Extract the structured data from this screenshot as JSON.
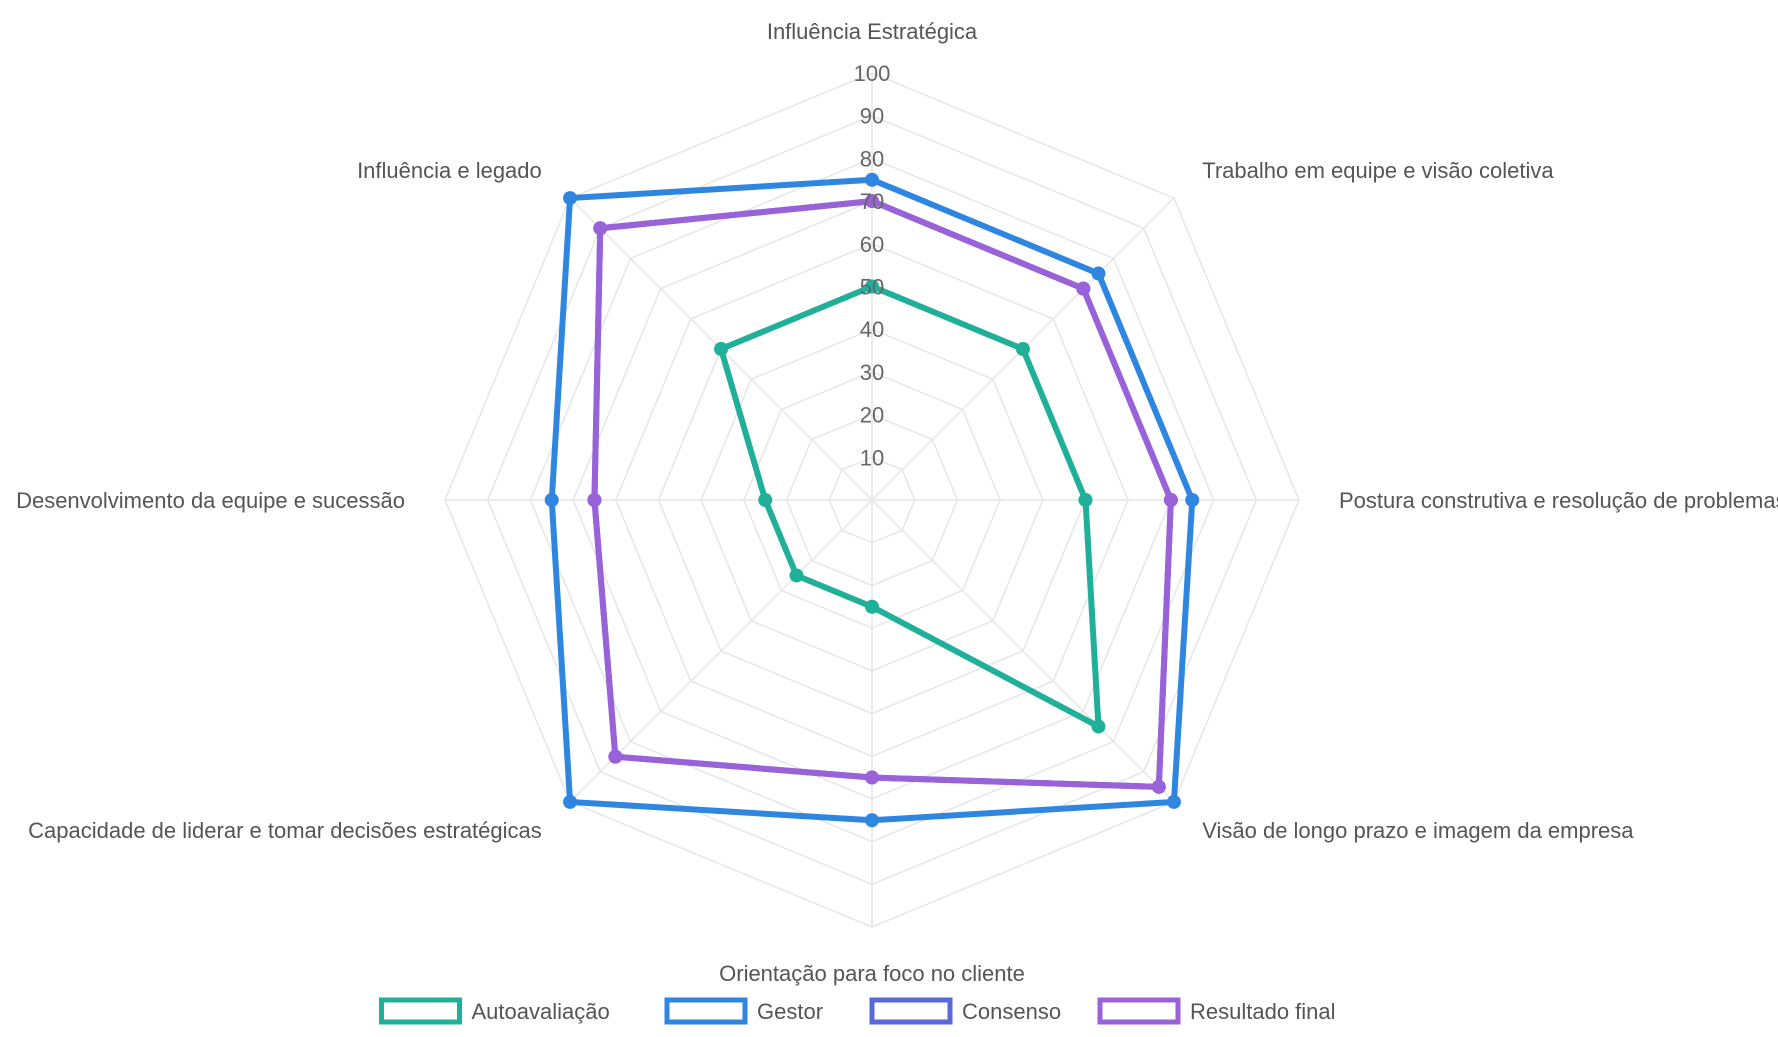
{
  "chart_data": {
    "type": "radar",
    "axes": [
      "Influência Estratégica",
      "Trabalho em equipe e visão coletiva",
      "Postura construtiva e resolução de problemas",
      "Visão de longo prazo e imagem da empresa",
      "Orientação para foco no cliente",
      "Capacidade de liderar e tomar decisões estratégicas",
      "Desenvolvimento da equipe e sucessão",
      "Influência e legado"
    ],
    "r_ticks": [
      "10",
      "20",
      "30",
      "40",
      "50",
      "60",
      "70",
      "80",
      "90",
      "100"
    ],
    "rlim": [
      0,
      100
    ],
    "grid": true,
    "legend_position": "bottom",
    "series": [
      {
        "name": "Autoavaliação",
        "color": "#20b09a",
        "values": [
          50,
          50,
          50,
          75,
          25,
          25,
          25,
          50
        ]
      },
      {
        "name": "Gestor",
        "color": "#2f86e0",
        "values": [
          75,
          75,
          75,
          100,
          75,
          100,
          75,
          100
        ]
      },
      {
        "name": "Consenso",
        "color": "#5b68d9",
        "values": [
          70,
          70,
          70,
          95,
          65,
          85,
          65,
          90
        ]
      },
      {
        "name": "Resultado final",
        "color": "#9a62d9",
        "values": [
          70,
          70,
          70,
          95,
          65,
          85,
          65,
          90
        ]
      }
    ]
  }
}
